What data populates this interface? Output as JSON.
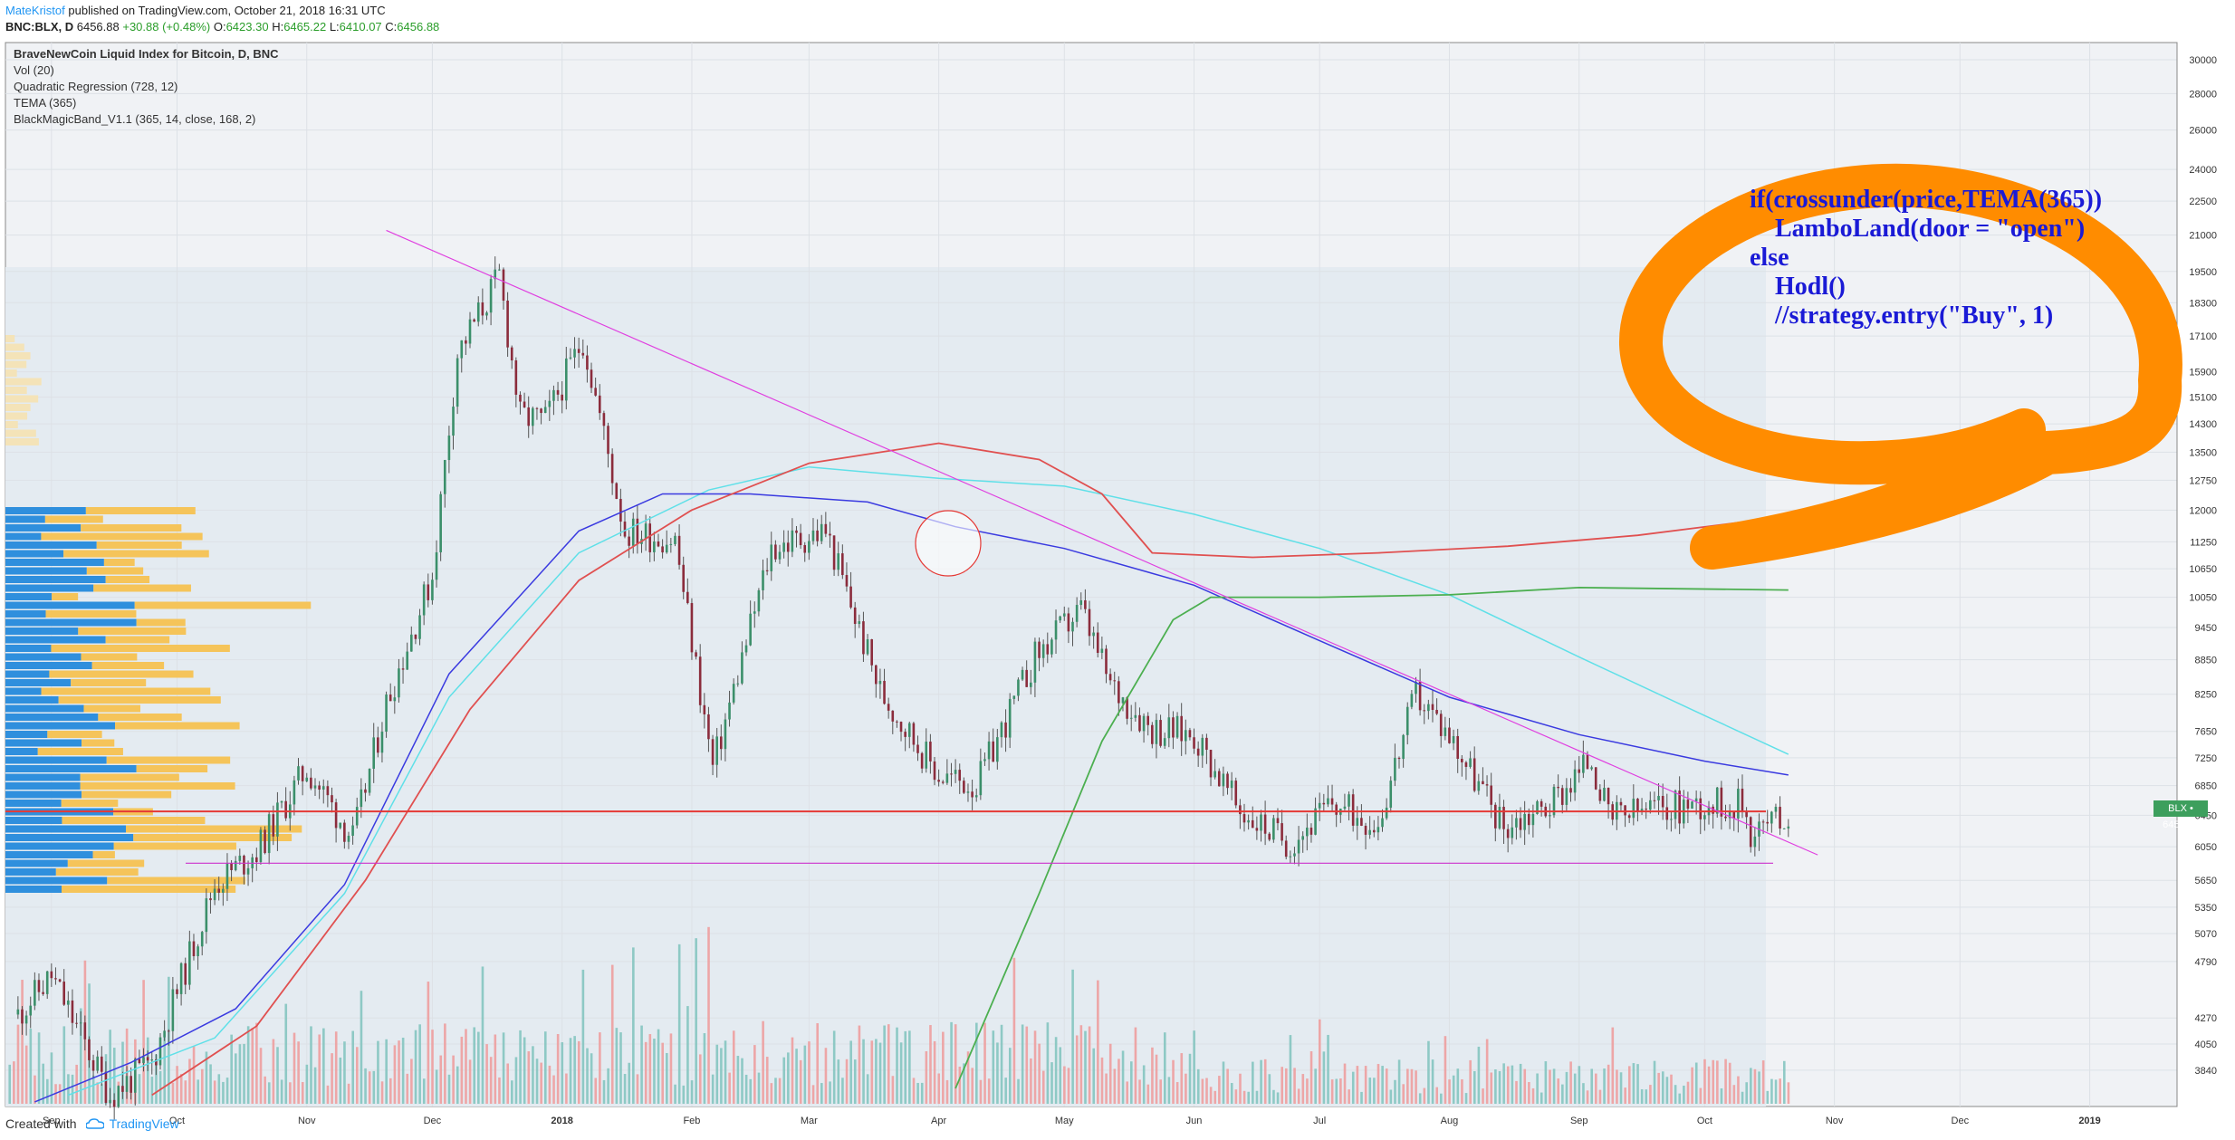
{
  "header": {
    "author": "MateKristof",
    "published": "published on TradingView.com, October 21, 2018 16:31 UTC"
  },
  "symbol_line": {
    "symbol": "BNC:BLX, D",
    "last": "6456.88",
    "change": "+30.88 (+0.48%)",
    "o_label": "O:",
    "o": "6423.30",
    "h_label": "H:",
    "h": "6465.22",
    "l_label": "L:",
    "l": "6410.07",
    "c_label": "C:",
    "c": "6456.88"
  },
  "legend": [
    "BraveNewCoin Liquid Index for Bitcoin, D, BNC",
    "Vol (20)",
    "Quadratic Regression (728, 12)",
    "TEMA (365)",
    "BlackMagicBand_V1.1 (365, 14, close, 168, 2)"
  ],
  "bubble": {
    "text": "if(crossunder(price,TEMA(365))\n    LamboLand(door = \"open\")\nelse\n    Hodl()\n    //strategy.entry(\"Buy\", 1)",
    "color": "#ff8c00",
    "text_color": "#1a1ad6"
  },
  "price_badge": "BLX • 6456.88",
  "footer": {
    "created_with": "Created with",
    "brand": "TradingView"
  },
  "chart_data": {
    "type": "line",
    "title": "BraveNewCoin Liquid Index for Bitcoin, D, BNC",
    "x_ticks": [
      "Sep",
      "Oct",
      "Nov",
      "Dec",
      "2018",
      "Feb",
      "Mar",
      "Apr",
      "May",
      "Jun",
      "Jul",
      "Aug",
      "Sep",
      "Oct",
      "Nov",
      "Dec",
      "2019"
    ],
    "y_ticks": [
      3840,
      4050,
      4270,
      4790,
      5070,
      5350,
      5650,
      6050,
      6450,
      6850,
      7250,
      7650,
      8250,
      8850,
      9450,
      10050,
      10650,
      11250,
      12000,
      12750,
      13500,
      14300,
      15100,
      15900,
      17100,
      18300,
      19500,
      21000,
      22500,
      24000,
      26000,
      28000,
      30000
    ],
    "y_scale": "log",
    "ylim": [
      3700,
      30500
    ],
    "xlim": [
      "2017-08-21",
      "2019-01-21"
    ],
    "price_path": {
      "dates": [
        "2017-08-24",
        "2017-09-01",
        "2017-09-15",
        "2017-09-25",
        "2017-10-10",
        "2017-10-20",
        "2017-11-01",
        "2017-11-12",
        "2017-11-20",
        "2017-12-01",
        "2017-12-07",
        "2017-12-17",
        "2017-12-22",
        "2017-12-28",
        "2018-01-06",
        "2018-01-16",
        "2018-01-28",
        "2018-02-06",
        "2018-02-20",
        "2018-03-05",
        "2018-03-18",
        "2018-04-01",
        "2018-04-10",
        "2018-04-24",
        "2018-05-05",
        "2018-05-12",
        "2018-05-22",
        "2018-06-01",
        "2018-06-12",
        "2018-06-24",
        "2018-07-04",
        "2018-07-15",
        "2018-07-24",
        "2018-08-01",
        "2018-08-14",
        "2018-08-25",
        "2018-09-04",
        "2018-09-08",
        "2018-09-20",
        "2018-10-01",
        "2018-10-10",
        "2018-10-12",
        "2018-10-21"
      ],
      "close": [
        4300,
        4650,
        3650,
        3900,
        5600,
        6000,
        7100,
        6150,
        8100,
        10500,
        16500,
        19300,
        14500,
        14400,
        17000,
        11500,
        11300,
        7100,
        11100,
        11500,
        8300,
        7000,
        6850,
        8900,
        9800,
        8400,
        7700,
        7600,
        6500,
        6100,
        6600,
        6350,
        8250,
        7600,
        6300,
        6600,
        7250,
        6400,
        6550,
        6600,
        6600,
        6250,
        6456
      ]
    },
    "quadratic_regression": {
      "dates": [
        "2017-09-25",
        "2017-10-20",
        "2017-11-15",
        "2017-12-10",
        "2018-01-05",
        "2018-02-01",
        "2018-03-01",
        "2018-04-01",
        "2018-04-25",
        "2018-05-10",
        "2018-05-22",
        "2018-06-15",
        "2018-07-15",
        "2018-08-15",
        "2018-09-15",
        "2018-10-21"
      ],
      "value": [
        3650,
        4200,
        5650,
        8000,
        10400,
        12000,
        13200,
        13750,
        13300,
        12400,
        11000,
        10900,
        11000,
        11150,
        11400,
        11850
      ]
    },
    "tema_365": {
      "dates": [
        "2017-08-28",
        "2017-09-20",
        "2017-10-15",
        "2017-11-10",
        "2017-12-05",
        "2018-01-05",
        "2018-01-25",
        "2018-02-15",
        "2018-03-15",
        "2018-04-05",
        "2018-05-01",
        "2018-06-01",
        "2018-07-01",
        "2018-08-01",
        "2018-09-01",
        "2018-10-01",
        "2018-10-21"
      ],
      "value": [
        3600,
        3900,
        4350,
        5600,
        8600,
        11500,
        12400,
        12400,
        12200,
        11600,
        11100,
        10300,
        9200,
        8200,
        7600,
        7200,
        7000
      ]
    },
    "cyan_band": {
      "dates": [
        "2017-09-05",
        "2017-10-10",
        "2017-11-10",
        "2017-12-05",
        "2018-01-05",
        "2018-02-05",
        "2018-03-01",
        "2018-04-01",
        "2018-05-01",
        "2018-06-01",
        "2018-07-01",
        "2018-08-01",
        "2018-09-01",
        "2018-10-01",
        "2018-10-21"
      ],
      "value": [
        3650,
        4100,
        5500,
        8200,
        11000,
        12500,
        13100,
        12800,
        12600,
        11900,
        11100,
        10100,
        8900,
        7900,
        7300
      ]
    },
    "green_regression": {
      "dates": [
        "2018-04-05",
        "2018-04-25",
        "2018-05-10",
        "2018-05-27",
        "2018-06-05",
        "2018-07-01",
        "2018-08-01",
        "2018-09-01",
        "2018-10-21"
      ],
      "value": [
        3700,
        5500,
        7500,
        9600,
        10050,
        10050,
        10100,
        10250,
        10200
      ]
    },
    "support_level": 6500,
    "lower_line": 5850,
    "trendline": {
      "start": [
        "2017-11-20",
        21200
      ],
      "end": [
        "2018-10-28",
        5950
      ]
    },
    "volume_scale_max": 1
  }
}
